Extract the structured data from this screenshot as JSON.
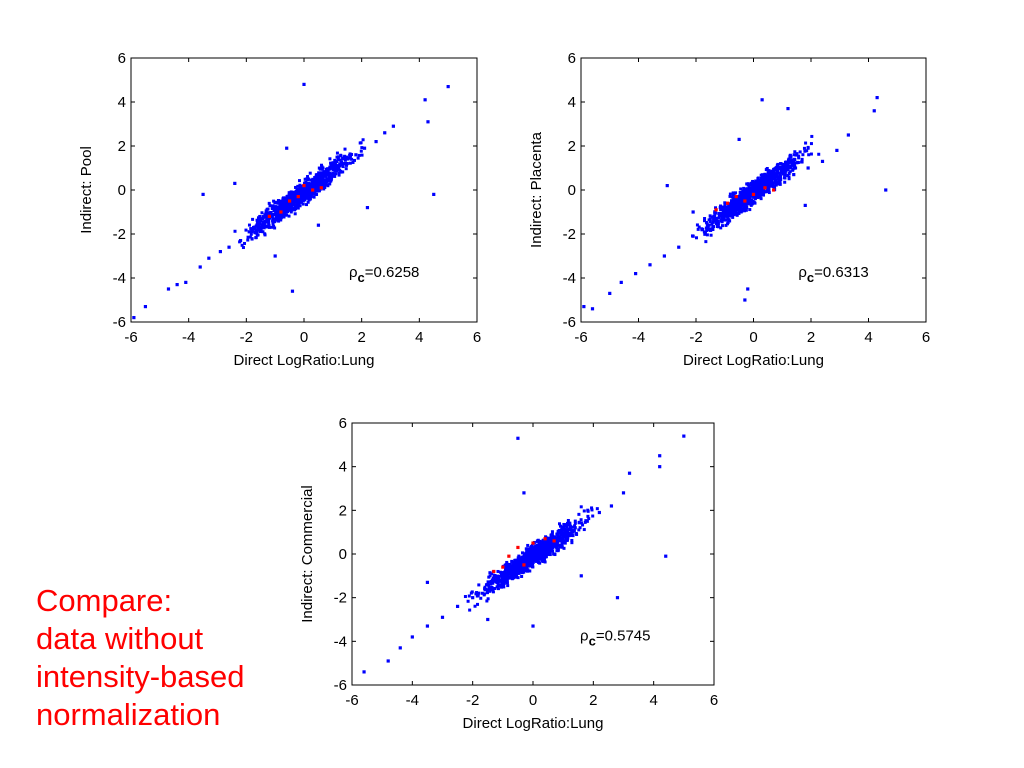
{
  "caption": {
    "lines": [
      "Compare:",
      "data without",
      "intensity-based",
      "normalization"
    ]
  },
  "colors": {
    "points": "#0000ff",
    "highlight": "#ff0000",
    "caption": "#ff0000"
  },
  "chart_data": [
    {
      "type": "scatter",
      "xlabel": "Direct LogRatio:Lung",
      "ylabel": "Indirect:  Pool",
      "xlim": [
        -6,
        6
      ],
      "ylim": [
        -6,
        6
      ],
      "xticks": [
        -6,
        -4,
        -2,
        0,
        2,
        4,
        6
      ],
      "yticks": [
        -6,
        -4,
        -2,
        0,
        2,
        4,
        6
      ],
      "annotation": {
        "rho": "ρ",
        "sub": "c",
        "text": "=0.6258"
      },
      "grid": false,
      "series": [
        {
          "color": "#0000ff",
          "points": [
            [
              -5.9,
              -5.8
            ],
            [
              -5.5,
              -5.3
            ],
            [
              -4.7,
              -4.5
            ],
            [
              -4.4,
              -4.3
            ],
            [
              -4.1,
              -4.2
            ],
            [
              -3.6,
              -3.5
            ],
            [
              -3.3,
              -3.1
            ],
            [
              -2.9,
              -2.8
            ],
            [
              -2.6,
              -2.6
            ],
            [
              -2.2,
              -2.3
            ],
            [
              -1.9,
              -1.9
            ],
            [
              -1.6,
              -1.7
            ],
            [
              -1.3,
              -1.4
            ],
            [
              -1.0,
              -1.1
            ],
            [
              -0.8,
              -0.8
            ],
            [
              -0.5,
              -0.6
            ],
            [
              -0.3,
              -0.3
            ],
            [
              0.0,
              0.0
            ],
            [
              0.3,
              0.2
            ],
            [
              0.6,
              0.5
            ],
            [
              0.9,
              0.7
            ],
            [
              1.2,
              1.0
            ],
            [
              1.5,
              1.2
            ],
            [
              1.8,
              1.6
            ],
            [
              2.1,
              1.9
            ],
            [
              2.5,
              2.2
            ],
            [
              2.8,
              2.6
            ],
            [
              3.1,
              2.9
            ],
            [
              4.2,
              4.1
            ],
            [
              5.0,
              4.7
            ],
            [
              4.3,
              3.1
            ],
            [
              4.5,
              -0.2
            ],
            [
              0.0,
              4.8
            ],
            [
              -0.4,
              -4.6
            ],
            [
              -3.5,
              -0.2
            ],
            [
              -1.0,
              -3.0
            ],
            [
              0.5,
              -1.6
            ],
            [
              -0.6,
              1.9
            ],
            [
              2.2,
              -0.8
            ],
            [
              -2.4,
              0.3
            ]
          ]
        },
        {
          "color": "#ff0000",
          "points": [
            [
              -1.2,
              -1.2
            ],
            [
              -0.8,
              -1.0
            ],
            [
              -0.5,
              -0.5
            ],
            [
              -0.2,
              -0.3
            ],
            [
              0.0,
              0.2
            ],
            [
              0.3,
              0.0
            ],
            [
              0.6,
              0.1
            ]
          ]
        }
      ]
    },
    {
      "type": "scatter",
      "xlabel": "Direct LogRatio:Lung",
      "ylabel": "Indirect:  Placenta",
      "xlim": [
        -6,
        6
      ],
      "ylim": [
        -6,
        6
      ],
      "xticks": [
        -6,
        -4,
        -2,
        0,
        2,
        4,
        6
      ],
      "yticks": [
        -6,
        -4,
        -2,
        0,
        2,
        4,
        6
      ],
      "annotation": {
        "rho": "ρ",
        "sub": "c",
        "text": "=0.6313"
      },
      "grid": false,
      "series": [
        {
          "color": "#0000ff",
          "points": [
            [
              -5.9,
              -5.3
            ],
            [
              -5.6,
              -5.4
            ],
            [
              -5.0,
              -4.7
            ],
            [
              -4.6,
              -4.2
            ],
            [
              -4.1,
              -3.8
            ],
            [
              -3.6,
              -3.4
            ],
            [
              -3.1,
              -3.0
            ],
            [
              -2.6,
              -2.6
            ],
            [
              -2.1,
              -2.1
            ],
            [
              -1.6,
              -1.6
            ],
            [
              -1.1,
              -1.1
            ],
            [
              -0.6,
              -0.7
            ],
            [
              -0.1,
              -0.2
            ],
            [
              0.4,
              0.1
            ],
            [
              0.9,
              0.4
            ],
            [
              1.4,
              0.7
            ],
            [
              1.9,
              1.0
            ],
            [
              2.4,
              1.3
            ],
            [
              2.9,
              1.8
            ],
            [
              3.3,
              2.5
            ],
            [
              4.3,
              4.2
            ],
            [
              4.2,
              3.6
            ],
            [
              4.6,
              0.0
            ],
            [
              0.3,
              4.1
            ],
            [
              1.2,
              3.7
            ],
            [
              -0.3,
              -5.0
            ],
            [
              -3.0,
              0.2
            ],
            [
              -2.1,
              -1.0
            ],
            [
              -0.2,
              -4.5
            ],
            [
              -0.5,
              2.3
            ],
            [
              1.8,
              -0.7
            ]
          ]
        },
        {
          "color": "#ff0000",
          "points": [
            [
              -1.3,
              -0.9
            ],
            [
              -0.9,
              -0.6
            ],
            [
              -0.6,
              -0.3
            ],
            [
              -0.3,
              -0.5
            ],
            [
              0.0,
              -0.2
            ],
            [
              0.4,
              0.1
            ],
            [
              0.7,
              0.0
            ]
          ]
        }
      ]
    },
    {
      "type": "scatter",
      "xlabel": "Direct LogRatio:Lung",
      "ylabel": "Indirect:  Commercial",
      "xlim": [
        -6,
        6
      ],
      "ylim": [
        -6,
        6
      ],
      "xticks": [
        -6,
        -4,
        -2,
        0,
        2,
        4,
        6
      ],
      "yticks": [
        -6,
        -4,
        -2,
        0,
        2,
        4,
        6
      ],
      "annotation": {
        "rho": "ρ",
        "sub": "c",
        "text": "=0.5745"
      },
      "grid": false,
      "series": [
        {
          "color": "#0000ff",
          "points": [
            [
              -5.6,
              -5.4
            ],
            [
              -4.8,
              -4.9
            ],
            [
              -4.4,
              -4.3
            ],
            [
              -4.0,
              -3.8
            ],
            [
              -3.5,
              -3.3
            ],
            [
              -3.0,
              -2.9
            ],
            [
              -2.5,
              -2.4
            ],
            [
              -2.0,
              -2.0
            ],
            [
              -1.5,
              -1.4
            ],
            [
              -1.0,
              -0.9
            ],
            [
              -0.6,
              -0.5
            ],
            [
              -0.2,
              -0.1
            ],
            [
              0.2,
              0.3
            ],
            [
              0.6,
              0.6
            ],
            [
              1.0,
              0.9
            ],
            [
              1.4,
              1.2
            ],
            [
              1.8,
              1.5
            ],
            [
              2.2,
              1.9
            ],
            [
              2.6,
              2.2
            ],
            [
              3.0,
              2.8
            ],
            [
              3.2,
              3.7
            ],
            [
              4.2,
              4.5
            ],
            [
              4.2,
              4.0
            ],
            [
              5.0,
              5.4
            ],
            [
              4.4,
              -0.1
            ],
            [
              -0.5,
              5.3
            ],
            [
              -3.5,
              -1.3
            ],
            [
              -1.5,
              -3.0
            ],
            [
              0.0,
              -3.3
            ],
            [
              -0.3,
              2.8
            ],
            [
              2.8,
              -2.0
            ],
            [
              1.6,
              -1.0
            ]
          ]
        },
        {
          "color": "#ff0000",
          "points": [
            [
              -1.3,
              -0.8
            ],
            [
              -1.0,
              -0.6
            ],
            [
              -0.8,
              -0.1
            ],
            [
              -0.5,
              0.3
            ],
            [
              -0.3,
              -0.5
            ],
            [
              0.0,
              0.5
            ],
            [
              0.4,
              0.7
            ],
            [
              0.7,
              0.6
            ]
          ]
        }
      ]
    }
  ]
}
